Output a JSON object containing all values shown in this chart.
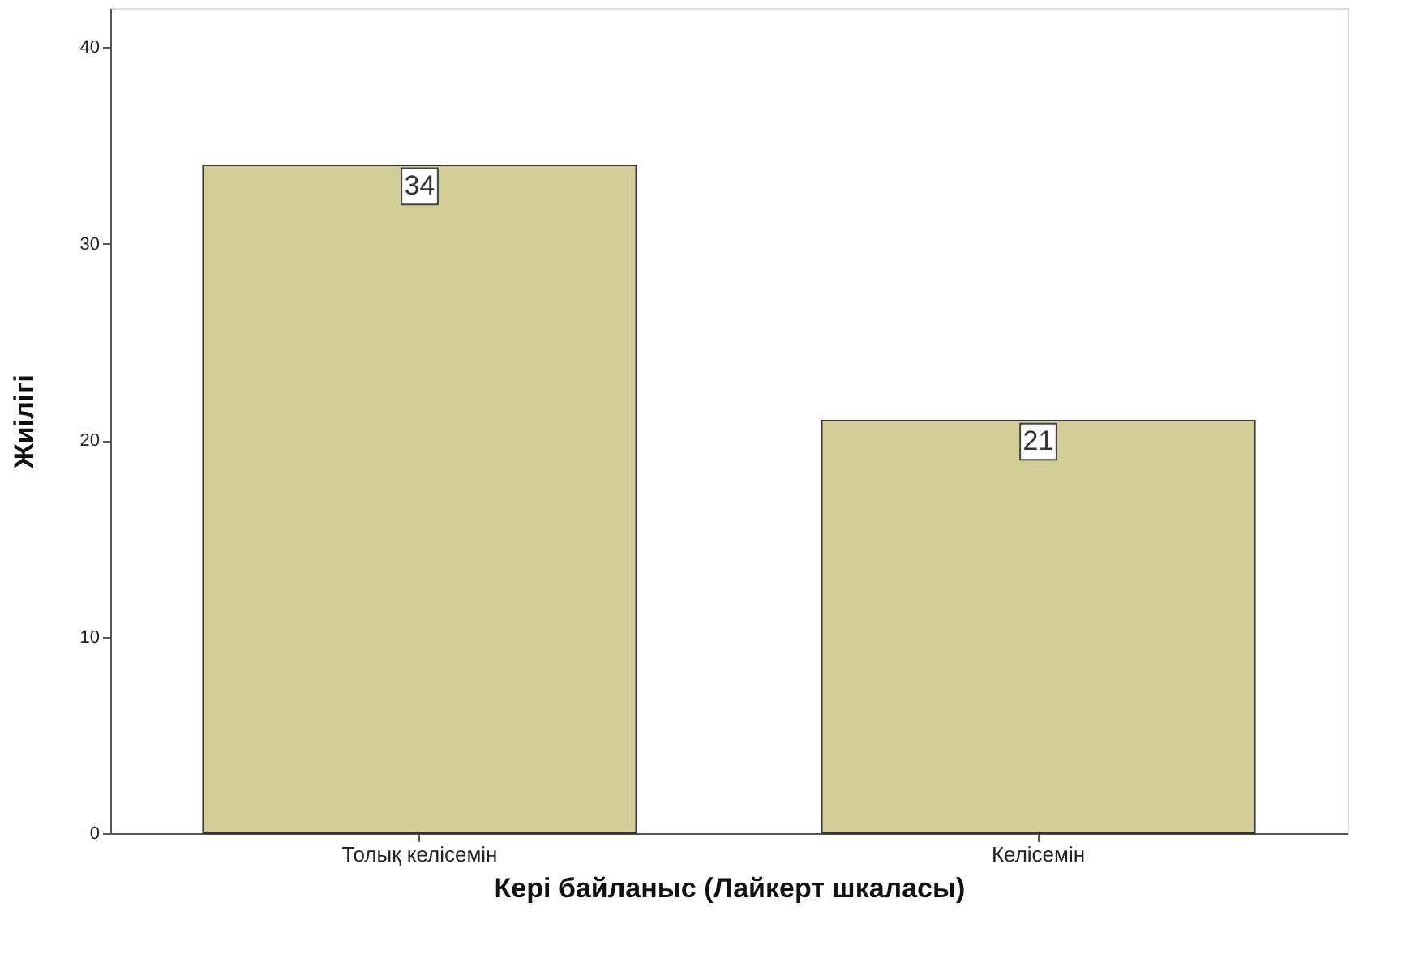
{
  "chart_data": {
    "type": "bar",
    "xlabel": "Кері байланыс (Лайкерт шкаласы)",
    "ylabel": "Жиілігі",
    "categories": [
      "Толық келісемін",
      "Келісемін"
    ],
    "values": [
      34,
      21
    ],
    "color": "#d2cc96",
    "ylim": [
      0,
      42
    ],
    "yticks": [
      0,
      10,
      20,
      30,
      40
    ],
    "grid": false,
    "data_labels": true
  }
}
